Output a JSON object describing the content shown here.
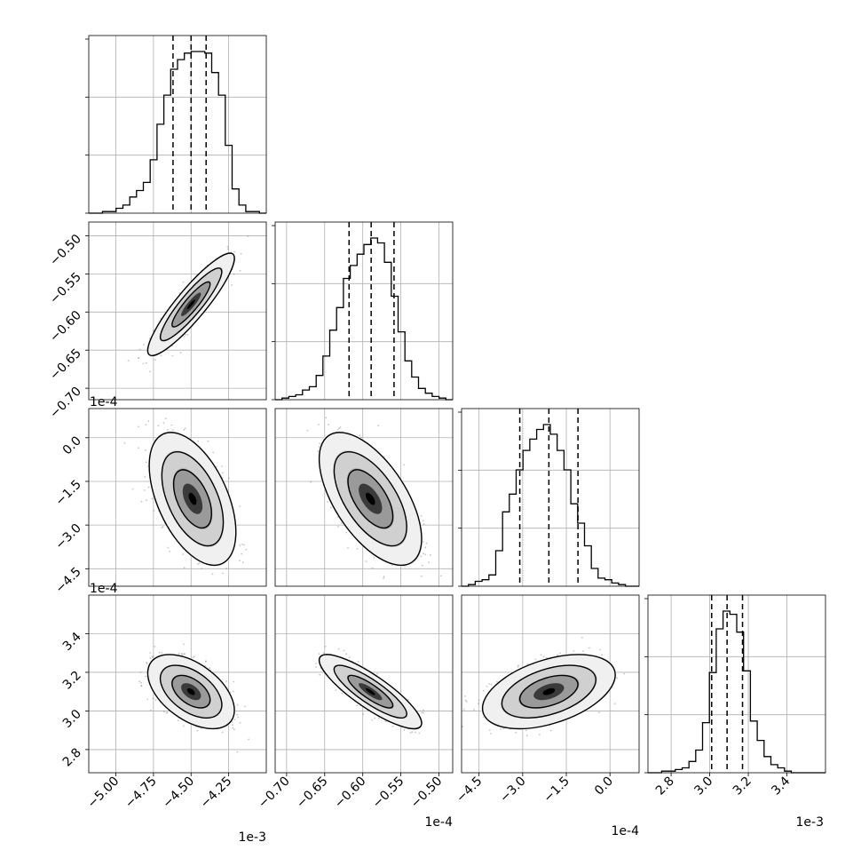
{
  "chart_data": {
    "type": "corner",
    "parameters": [
      {
        "index": 0,
        "range": [
          -5.18,
          -4.0
        ],
        "ticks": [
          "-5.00",
          "-4.75",
          "-4.50",
          "-4.25"
        ],
        "tick_values": [
          -5.0,
          -4.75,
          -4.5,
          -4.25
        ],
        "offset_label": "1e-3"
      },
      {
        "index": 1,
        "range": [
          -0.715,
          -0.482
        ],
        "ticks": [
          "-0.70",
          "-0.65",
          "-0.60",
          "-0.55",
          "-0.50"
        ],
        "tick_values": [
          -0.7,
          -0.65,
          -0.6,
          -0.55,
          -0.5
        ],
        "offset_label": "1e-4"
      },
      {
        "index": 2,
        "range": [
          -5.1,
          1.0
        ],
        "ticks": [
          "-4.5",
          "-3.0",
          "-1.5",
          "0.0"
        ],
        "tick_values": [
          -4.5,
          -3.0,
          -1.5,
          0.0
        ],
        "offset_label": "1e-4"
      },
      {
        "index": 3,
        "range": [
          2.68,
          3.6
        ],
        "ticks": [
          "2.8",
          "3.0",
          "3.2",
          "3.4"
        ],
        "tick_values": [
          2.8,
          3.0,
          3.2,
          3.4
        ],
        "offset_label": "1e-3"
      }
    ],
    "histograms": [
      {
        "parameter": 0,
        "quantiles": [
          -4.62,
          -4.5,
          -4.4
        ],
        "bin_range": [
          -5.18,
          -4.0
        ],
        "counts": [
          0.0,
          0.0,
          0.01,
          0.01,
          0.03,
          0.05,
          0.1,
          0.14,
          0.19,
          0.33,
          0.55,
          0.73,
          0.89,
          0.95,
          0.99,
          1.0,
          1.0,
          0.99,
          0.87,
          0.73,
          0.42,
          0.15,
          0.05,
          0.01,
          0.01,
          0.0
        ]
      },
      {
        "parameter": 1,
        "quantiles": [
          -0.618,
          -0.589,
          -0.559
        ],
        "bin_range": [
          -0.715,
          -0.482
        ],
        "counts": [
          0.0,
          0.01,
          0.02,
          0.03,
          0.06,
          0.08,
          0.15,
          0.27,
          0.43,
          0.57,
          0.75,
          0.83,
          0.9,
          0.96,
          1.0,
          0.97,
          0.85,
          0.64,
          0.42,
          0.24,
          0.14,
          0.07,
          0.04,
          0.02,
          0.01,
          0.0
        ]
      },
      {
        "parameter": 2,
        "quantiles": [
          -3.1,
          -2.1,
          -1.1
        ],
        "bin_range": [
          -5.1,
          1.0
        ],
        "counts": [
          0.0,
          0.01,
          0.03,
          0.04,
          0.07,
          0.22,
          0.46,
          0.57,
          0.72,
          0.84,
          0.91,
          0.97,
          1.0,
          0.94,
          0.84,
          0.72,
          0.51,
          0.39,
          0.25,
          0.11,
          0.05,
          0.04,
          0.02,
          0.01,
          0.0,
          0.0
        ]
      },
      {
        "parameter": 3,
        "quantiles": [
          3.01,
          3.09,
          3.17
        ],
        "bin_range": [
          2.68,
          3.6
        ],
        "counts": [
          0.0,
          0.0,
          0.01,
          0.01,
          0.02,
          0.03,
          0.07,
          0.14,
          0.31,
          0.62,
          0.89,
          1.0,
          0.98,
          0.87,
          0.63,
          0.32,
          0.2,
          0.1,
          0.05,
          0.03,
          0.01,
          0.0,
          0.0,
          0.0,
          0.0,
          0.0
        ]
      }
    ],
    "pairs": [
      {
        "x_param": 0,
        "y_param": 1,
        "mean": [
          -4.5,
          -0.59
        ],
        "sd": [
          0.12,
          0.028
        ],
        "corr": 0.9
      },
      {
        "x_param": 0,
        "y_param": 2,
        "mean": [
          -4.49,
          -2.1
        ],
        "sd": [
          0.12,
          0.95
        ],
        "corr": -0.5
      },
      {
        "x_param": 1,
        "y_param": 2,
        "mean": [
          -0.59,
          -2.1
        ],
        "sd": [
          0.028,
          0.95
        ],
        "corr": -0.6
      },
      {
        "x_param": 0,
        "y_param": 3,
        "mean": [
          -4.5,
          3.1
        ],
        "sd": [
          0.12,
          0.08
        ],
        "corr": -0.5
      },
      {
        "x_param": 1,
        "y_param": 3,
        "mean": [
          -0.59,
          3.1
        ],
        "sd": [
          0.028,
          0.08
        ],
        "corr": -0.85
      },
      {
        "x_param": 2,
        "y_param": 3,
        "mean": [
          -2.1,
          3.1
        ],
        "sd": [
          0.95,
          0.08
        ],
        "corr": 0.45
      }
    ],
    "grid": true,
    "colors": {
      "line": "#000000",
      "grid": "#b0b0b0",
      "points": "#7f7f7f"
    }
  }
}
